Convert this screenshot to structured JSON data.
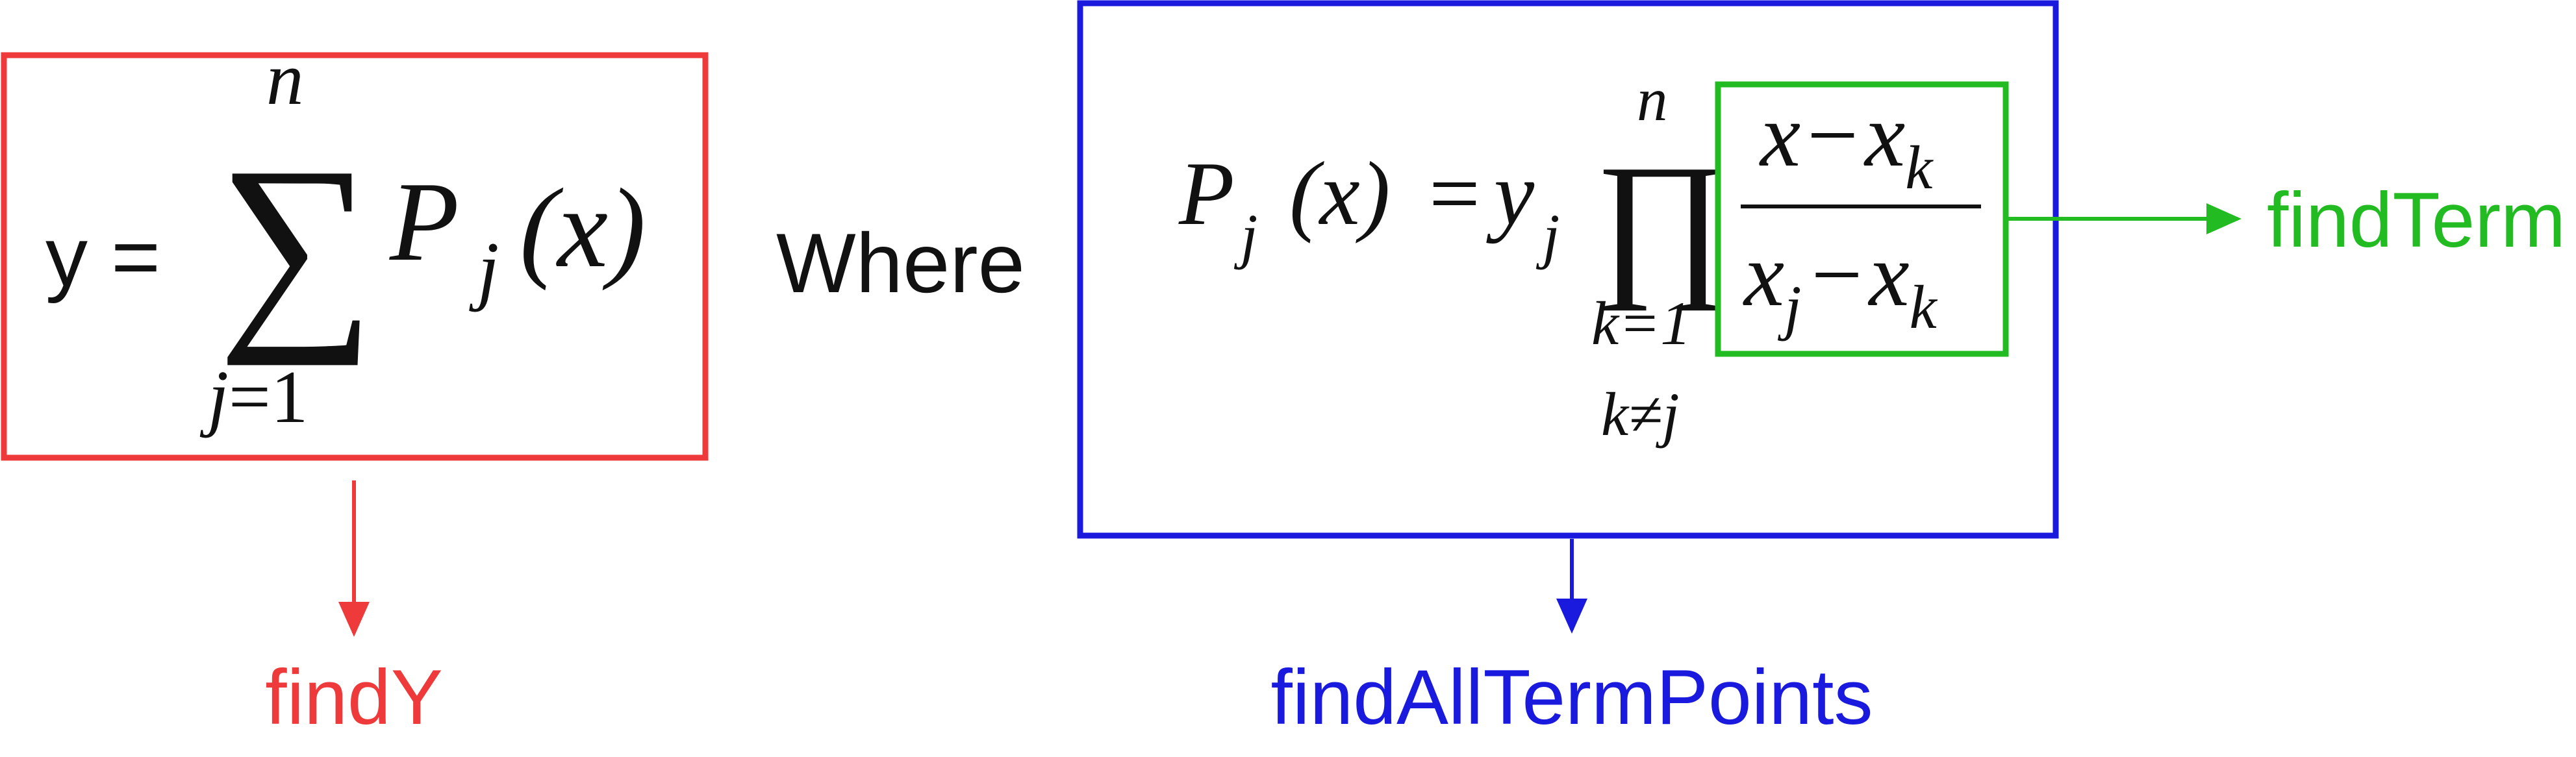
{
  "formula_y": {
    "lhs": "y =",
    "sum_upper": "n",
    "sum_lower_var": "j",
    "sum_lower_eq": "=",
    "sum_lower_val": "1",
    "term_P": "P",
    "term_sub": "j",
    "term_arg": "(x)"
  },
  "where_text": "Where",
  "formula_p": {
    "lhs_P": "P",
    "lhs_sub": "j",
    "lhs_arg": "(x)",
    "eq": "=",
    "y": "y",
    "y_sub": "j",
    "prod_upper": "n",
    "prod_lower_1": "k=1",
    "prod_lower_2": "k≠j",
    "num_x": "x",
    "num_minus": "−",
    "num_xk": "x",
    "num_xk_sub": "k",
    "den_xj": "x",
    "den_xj_sub": "j",
    "den_minus": "−",
    "den_xk": "x",
    "den_xk_sub": "k"
  },
  "labels": {
    "findY": "findY",
    "findAllTermPoints": "findAllTermPoints",
    "findTerm": "findTerm"
  },
  "colors": {
    "red": "#ee3a3a",
    "blue": "#1a1adf",
    "green": "#22bb22"
  }
}
